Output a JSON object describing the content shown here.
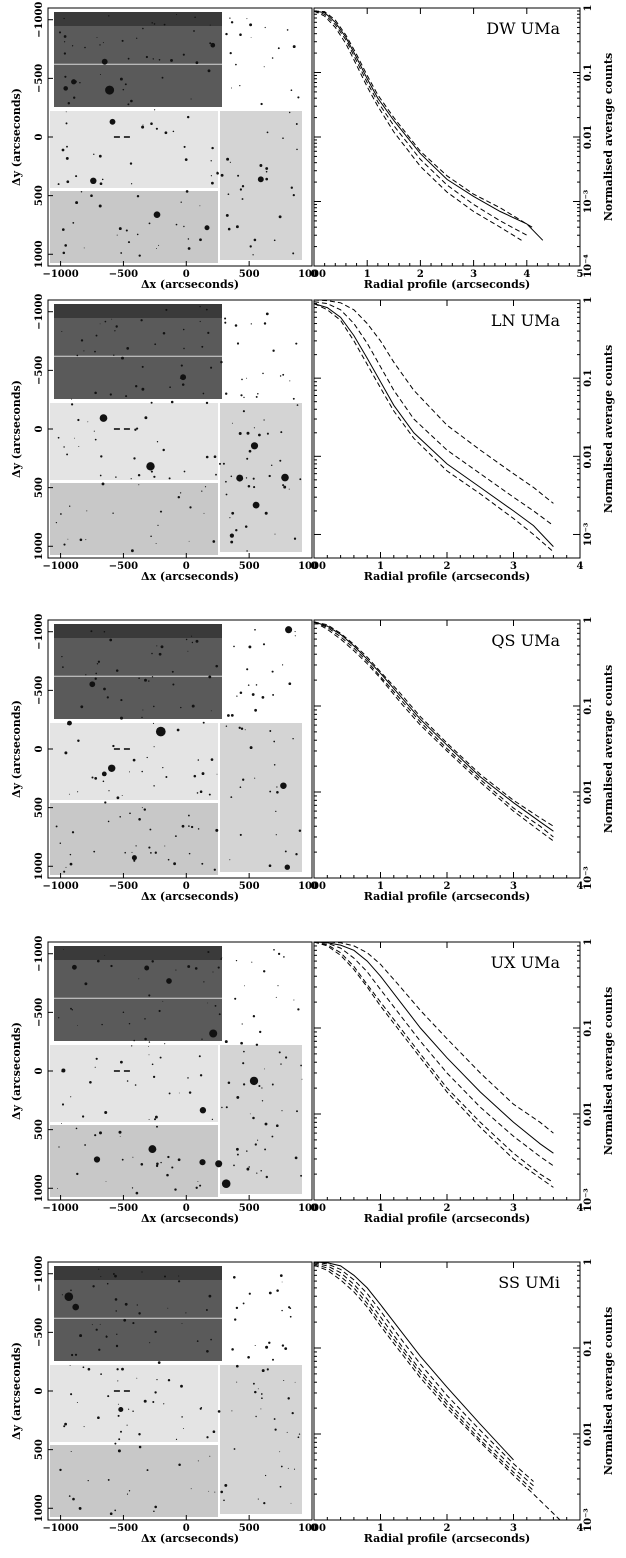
{
  "chart_data": [
    {
      "type": "line",
      "object": "DW UMa",
      "image_xlabel": "Δx (arcseconds)",
      "image_ylabel": "Δy (arcseconds)",
      "image_xticks": [
        "−1000",
        "−500",
        "0",
        "500",
        "1000"
      ],
      "image_yticks": [
        "1000",
        "500",
        "0",
        "−500",
        "−1000"
      ],
      "xlabel": "Radial profile (arcseconds)",
      "ylabel": "Normalised average counts",
      "xlim": [
        0,
        5
      ],
      "ylim": [
        0.0001,
        1
      ],
      "xticks": [
        "0",
        "1",
        "2",
        "3",
        "4",
        "5"
      ],
      "yticks": [
        "1",
        "0.1",
        "0.01",
        "10⁻³",
        "10⁻⁴"
      ],
      "series": [
        {
          "style": "solid",
          "x": [
            0.0,
            0.2,
            0.4,
            0.6,
            0.8,
            1.0,
            1.2,
            1.5,
            2.0,
            2.5,
            3.0,
            3.5,
            4.0,
            4.3
          ],
          "y": [
            0.9,
            0.85,
            0.6,
            0.35,
            0.17,
            0.08,
            0.04,
            0.018,
            0.0055,
            0.0022,
            0.0012,
            0.0007,
            0.00045,
            0.00025
          ]
        },
        {
          "style": "dashed",
          "x": [
            0.0,
            0.2,
            0.4,
            0.6,
            0.8,
            1.0,
            1.2,
            1.5,
            2.0,
            2.5,
            3.0,
            3.5,
            4.0
          ],
          "y": [
            0.9,
            0.8,
            0.55,
            0.32,
            0.15,
            0.07,
            0.035,
            0.015,
            0.0045,
            0.0018,
            0.0009,
            0.0005,
            0.0003
          ]
        },
        {
          "style": "dashed",
          "x": [
            0.0,
            0.2,
            0.4,
            0.6,
            0.8,
            1.0,
            1.2,
            1.5,
            2.0,
            2.5,
            3.0,
            3.5,
            3.9
          ],
          "y": [
            0.9,
            0.75,
            0.5,
            0.28,
            0.13,
            0.06,
            0.03,
            0.012,
            0.0035,
            0.0014,
            0.0007,
            0.0004,
            0.00025
          ]
        },
        {
          "style": "dashed",
          "x": [
            0.0,
            0.2,
            0.4,
            0.6,
            0.8,
            1.0,
            1.2,
            1.5,
            2.0,
            2.5,
            3.0,
            3.5,
            4.1
          ],
          "y": [
            0.9,
            0.88,
            0.65,
            0.38,
            0.19,
            0.09,
            0.045,
            0.02,
            0.006,
            0.0025,
            0.0013,
            0.0008,
            0.0004
          ]
        }
      ]
    },
    {
      "type": "line",
      "object": "LN UMa",
      "image_xlabel": "Δx (arcseconds)",
      "image_ylabel": "Δy (arcseconds)",
      "image_xticks": [
        "−1000",
        "−500",
        "0",
        "500",
        "1000"
      ],
      "image_yticks": [
        "1000",
        "500",
        "0",
        "−500",
        "−1000"
      ],
      "xlabel": "Radial profile (arcseconds)",
      "ylabel": "Normalised average counts",
      "xlim": [
        0,
        4
      ],
      "ylim": [
        0.0005,
        1
      ],
      "xticks": [
        "0",
        "1",
        "2",
        "3",
        "4"
      ],
      "yticks": [
        "1",
        "0.1",
        "0.01",
        "10⁻³"
      ],
      "series": [
        {
          "style": "solid",
          "x": [
            0.0,
            0.2,
            0.4,
            0.6,
            0.8,
            1.0,
            1.2,
            1.5,
            2.0,
            2.5,
            3.0,
            3.3,
            3.6
          ],
          "y": [
            0.9,
            0.8,
            0.6,
            0.35,
            0.18,
            0.09,
            0.045,
            0.02,
            0.008,
            0.004,
            0.002,
            0.0013,
            0.0007
          ]
        },
        {
          "style": "dashed",
          "x": [
            0.0,
            0.2,
            0.4,
            0.6,
            0.8,
            1.0,
            1.2,
            1.5,
            2.0,
            2.5,
            3.0,
            3.3,
            3.6
          ],
          "y": [
            0.9,
            0.75,
            0.55,
            0.3,
            0.15,
            0.075,
            0.038,
            0.017,
            0.0065,
            0.0033,
            0.0016,
            0.001,
            0.0006
          ]
        },
        {
          "style": "dashed",
          "x": [
            0.0,
            0.2,
            0.4,
            0.6,
            0.8,
            1.0,
            1.2,
            1.5,
            2.0,
            2.5,
            3.0,
            3.3,
            3.6
          ],
          "y": [
            0.95,
            0.9,
            0.75,
            0.5,
            0.28,
            0.14,
            0.07,
            0.03,
            0.012,
            0.006,
            0.003,
            0.002,
            0.0013
          ]
        },
        {
          "style": "dashed",
          "x": [
            0.0,
            0.2,
            0.4,
            0.6,
            0.8,
            1.0,
            1.2,
            1.5,
            2.0,
            2.5,
            3.0,
            3.3,
            3.6
          ],
          "y": [
            1.0,
            0.98,
            0.92,
            0.75,
            0.5,
            0.3,
            0.16,
            0.07,
            0.025,
            0.012,
            0.006,
            0.004,
            0.0025
          ]
        }
      ]
    },
    {
      "type": "line",
      "object": "QS UMa",
      "image_xlabel": "Δx (arcseconds)",
      "image_ylabel": "Δy (arcseconds)",
      "image_xticks": [
        "−1000",
        "−500",
        "0",
        "500",
        "1000"
      ],
      "image_yticks": [
        "1000",
        "500",
        "0",
        "−500",
        "−1000"
      ],
      "xlabel": "Radial profile (arcseconds)",
      "ylabel": "Normalised average counts",
      "xlim": [
        0,
        4
      ],
      "ylim": [
        0.001,
        1
      ],
      "xticks": [
        "0",
        "1",
        "2",
        "3",
        "4"
      ],
      "yticks": [
        "1",
        "0.1",
        "0.01",
        "10⁻³"
      ],
      "series": [
        {
          "style": "solid",
          "x": [
            0.0,
            0.2,
            0.4,
            0.6,
            0.8,
            1.0,
            1.3,
            1.6,
            2.0,
            2.5,
            3.0,
            3.4,
            3.6
          ],
          "y": [
            0.95,
            0.85,
            0.68,
            0.5,
            0.35,
            0.24,
            0.13,
            0.07,
            0.035,
            0.015,
            0.0075,
            0.0045,
            0.0035
          ]
        },
        {
          "style": "dashed",
          "x": [
            0.0,
            0.2,
            0.4,
            0.6,
            0.8,
            1.0,
            1.3,
            1.6,
            2.0,
            2.5,
            3.0,
            3.4,
            3.6
          ],
          "y": [
            0.95,
            0.82,
            0.64,
            0.47,
            0.33,
            0.22,
            0.12,
            0.065,
            0.032,
            0.014,
            0.0065,
            0.004,
            0.003
          ]
        },
        {
          "style": "dashed",
          "x": [
            0.0,
            0.2,
            0.4,
            0.6,
            0.8,
            1.0,
            1.3,
            1.6,
            2.0,
            2.5,
            3.0,
            3.4,
            3.6
          ],
          "y": [
            0.95,
            0.78,
            0.6,
            0.44,
            0.31,
            0.21,
            0.11,
            0.06,
            0.03,
            0.013,
            0.006,
            0.0035,
            0.0027
          ]
        },
        {
          "style": "dashed",
          "x": [
            0.0,
            0.2,
            0.4,
            0.6,
            0.8,
            1.0,
            1.3,
            1.6,
            2.0,
            2.5,
            3.0,
            3.4,
            3.6
          ],
          "y": [
            0.95,
            0.88,
            0.7,
            0.52,
            0.37,
            0.25,
            0.14,
            0.075,
            0.037,
            0.016,
            0.008,
            0.005,
            0.004
          ]
        }
      ]
    },
    {
      "type": "line",
      "object": "UX UMa",
      "image_xlabel": "Δx (arcseconds)",
      "image_ylabel": "Δy (arcseconds)",
      "image_xticks": [
        "−1000",
        "−500",
        "0",
        "500",
        "1000"
      ],
      "image_yticks": [
        "1000",
        "500",
        "0",
        "−500",
        "−1000"
      ],
      "xlabel": "Radial profile (arcseconds)",
      "ylabel": "Normalised average counts",
      "xlim": [
        0,
        4
      ],
      "ylim": [
        0.001,
        1
      ],
      "xticks": [
        "0",
        "1",
        "2",
        "3",
        "4"
      ],
      "yticks": [
        "1",
        "0.1",
        "0.01",
        "10⁻³"
      ],
      "series": [
        {
          "style": "solid",
          "x": [
            0.0,
            0.2,
            0.4,
            0.6,
            0.8,
            1.0,
            1.3,
            1.6,
            2.0,
            2.5,
            3.0,
            3.4,
            3.6
          ],
          "y": [
            1.0,
            0.98,
            0.92,
            0.8,
            0.6,
            0.4,
            0.2,
            0.1,
            0.045,
            0.018,
            0.008,
            0.0045,
            0.0035
          ]
        },
        {
          "style": "dashed",
          "x": [
            0.0,
            0.2,
            0.4,
            0.6,
            0.8,
            1.0,
            1.3,
            1.6,
            2.0,
            2.5,
            3.0,
            3.4,
            3.6
          ],
          "y": [
            1.0,
            0.97,
            0.85,
            0.65,
            0.45,
            0.28,
            0.14,
            0.07,
            0.03,
            0.012,
            0.0055,
            0.0032,
            0.0025
          ]
        },
        {
          "style": "dashed",
          "x": [
            0.0,
            0.2,
            0.4,
            0.6,
            0.8,
            1.0,
            1.3,
            1.6,
            2.0,
            2.5,
            3.0,
            3.4,
            3.6
          ],
          "y": [
            1.0,
            0.93,
            0.75,
            0.52,
            0.32,
            0.2,
            0.1,
            0.05,
            0.02,
            0.008,
            0.0035,
            0.002,
            0.0016
          ]
        },
        {
          "style": "dashed",
          "x": [
            0.0,
            0.2,
            0.4,
            0.6,
            0.8,
            1.0,
            1.3,
            1.6,
            2.0,
            2.5,
            3.0,
            3.4,
            3.6
          ],
          "y": [
            1.0,
            0.9,
            0.7,
            0.48,
            0.3,
            0.18,
            0.09,
            0.045,
            0.018,
            0.007,
            0.003,
            0.0018,
            0.0014
          ]
        },
        {
          "style": "dashed",
          "x": [
            0.0,
            0.2,
            0.4,
            0.6,
            0.8,
            1.0,
            1.3,
            1.6,
            2.0,
            2.5,
            3.0,
            3.4,
            3.6
          ],
          "y": [
            1.0,
            1.0,
            0.98,
            0.9,
            0.75,
            0.55,
            0.3,
            0.16,
            0.075,
            0.03,
            0.013,
            0.008,
            0.006
          ]
        }
      ]
    },
    {
      "type": "line",
      "object": "SS UMi",
      "image_xlabel": "Δx (arcseconds)",
      "image_ylabel": "Δy (arcseconds)",
      "image_xticks": [
        "−1000",
        "−500",
        "0",
        "500",
        "1000"
      ],
      "image_yticks": [
        "1000",
        "500",
        "0",
        "−500",
        "−1000"
      ],
      "xlabel": "Radial profile (arcseconds)",
      "ylabel": "Normalised average counts",
      "xlim": [
        0,
        4
      ],
      "ylim": [
        0.001,
        1
      ],
      "xticks": [
        "0",
        "1",
        "2",
        "3",
        "4"
      ],
      "yticks": [
        "1",
        "0.1",
        "0.01",
        "10⁻³"
      ],
      "series": [
        {
          "style": "solid",
          "x": [
            0.0,
            0.2,
            0.4,
            0.6,
            0.8,
            1.0,
            1.3,
            1.6,
            2.0,
            2.5,
            3.0
          ],
          "y": [
            1.0,
            0.98,
            0.9,
            0.7,
            0.5,
            0.32,
            0.16,
            0.08,
            0.035,
            0.013,
            0.005
          ]
        },
        {
          "style": "dashed",
          "x": [
            0.0,
            0.2,
            0.4,
            0.6,
            0.8,
            1.0,
            1.3,
            1.6,
            2.0,
            2.5,
            3.0,
            3.3
          ],
          "y": [
            1.0,
            0.95,
            0.82,
            0.62,
            0.43,
            0.27,
            0.13,
            0.065,
            0.028,
            0.011,
            0.0045,
            0.0028
          ]
        },
        {
          "style": "dashed",
          "x": [
            0.0,
            0.2,
            0.4,
            0.6,
            0.8,
            1.0,
            1.3,
            1.6,
            2.0,
            2.5,
            3.0,
            3.3
          ],
          "y": [
            0.98,
            0.9,
            0.75,
            0.55,
            0.37,
            0.23,
            0.11,
            0.055,
            0.024,
            0.0095,
            0.004,
            0.0025
          ]
        },
        {
          "style": "dashed",
          "x": [
            0.0,
            0.2,
            0.4,
            0.6,
            0.8,
            1.0,
            1.3,
            1.6,
            2.0,
            2.5,
            3.0,
            3.3
          ],
          "y": [
            0.95,
            0.85,
            0.68,
            0.5,
            0.33,
            0.2,
            0.1,
            0.05,
            0.022,
            0.0085,
            0.0036,
            0.0022
          ]
        },
        {
          "style": "dashed",
          "x": [
            0.0,
            0.2,
            0.4,
            0.6,
            0.8,
            1.0,
            1.3,
            1.6,
            2.0,
            2.5,
            3.0,
            3.3,
            3.7
          ],
          "y": [
            0.92,
            0.8,
            0.62,
            0.45,
            0.3,
            0.18,
            0.09,
            0.045,
            0.02,
            0.008,
            0.0033,
            0.002,
            0.001
          ]
        }
      ]
    }
  ]
}
